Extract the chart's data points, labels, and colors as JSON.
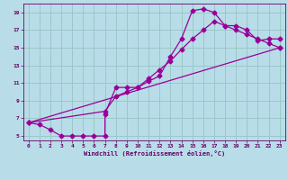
{
  "bg_color": "#b8dde8",
  "line_color": "#990099",
  "grid_color": "#9ac8c8",
  "xlabel": "Windchill (Refroidissement éolien,°C)",
  "xlabel_color": "#660066",
  "tick_color": "#660066",
  "xlim": [
    -0.5,
    23.5
  ],
  "ylim": [
    4.5,
    20.0
  ],
  "xticks": [
    0,
    1,
    2,
    3,
    4,
    5,
    6,
    7,
    8,
    9,
    10,
    11,
    12,
    13,
    14,
    15,
    16,
    17,
    18,
    19,
    20,
    21,
    22,
    23
  ],
  "yticks": [
    5,
    7,
    9,
    11,
    13,
    15,
    17,
    19
  ],
  "line1_x": [
    0,
    1,
    2,
    3,
    4,
    5,
    6,
    7,
    7,
    8,
    9,
    10,
    11,
    12,
    13,
    14,
    15,
    16,
    17,
    18,
    19,
    20,
    21,
    22,
    23
  ],
  "line1_y": [
    6.5,
    6.3,
    5.7,
    5.0,
    5.0,
    5.0,
    5.0,
    5.0,
    7.5,
    10.5,
    10.5,
    10.5,
    11.2,
    11.8,
    14.0,
    16.0,
    19.2,
    19.4,
    19.0,
    17.5,
    17.5,
    17.0,
    15.8,
    16.0,
    16.0
  ],
  "line2_x": [
    0,
    7,
    8,
    9,
    10,
    11,
    12,
    13,
    14,
    15,
    16,
    17,
    18,
    19,
    20,
    21,
    22,
    23
  ],
  "line2_y": [
    6.5,
    7.8,
    9.5,
    10.0,
    10.5,
    11.5,
    12.5,
    13.5,
    14.8,
    16.0,
    17.0,
    18.0,
    17.5,
    17.0,
    16.5,
    16.0,
    15.5,
    15.0
  ],
  "line3_x": [
    0,
    23
  ],
  "line3_y": [
    6.5,
    15.0
  ]
}
